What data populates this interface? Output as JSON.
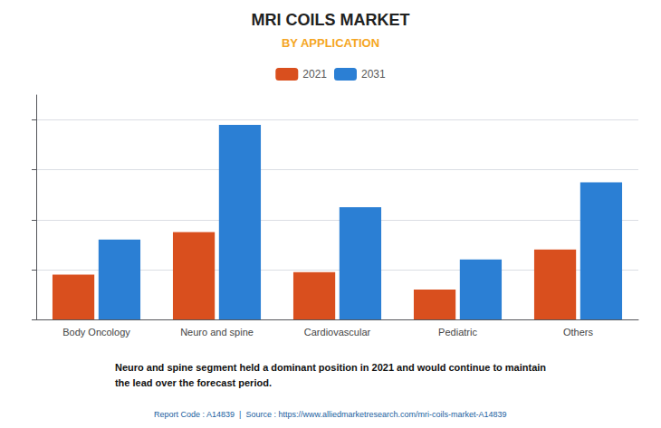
{
  "chart_data": {
    "type": "bar",
    "title": "MRI COILS MARKET",
    "subtitle": "BY APPLICATION",
    "categories": [
      "Body Oncology",
      "Neuro and spine",
      "Cardiovascular",
      "Pediatric",
      "Others"
    ],
    "series": [
      {
        "name": "2021",
        "color": "#d94f1e",
        "values": [
          1.8,
          3.5,
          1.9,
          1.2,
          2.8
        ]
      },
      {
        "name": "2031",
        "color": "#2b7fd4",
        "values": [
          3.2,
          7.8,
          4.5,
          2.4,
          5.5
        ]
      }
    ],
    "ylim": [
      0,
      9
    ],
    "yticks": [
      0,
      2,
      4,
      6,
      8
    ],
    "grid": true,
    "legend": "top",
    "tick_labels": "x",
    "annotations": [
      "Neuro and spine segment held a dominant position in 2021 and would continue to maintain\nthe lead over the forecast period.",
      "Report Code : A14839  |  Source : https://www.alliedmarketresearch.com/mri-coils-market-A14839"
    ]
  }
}
